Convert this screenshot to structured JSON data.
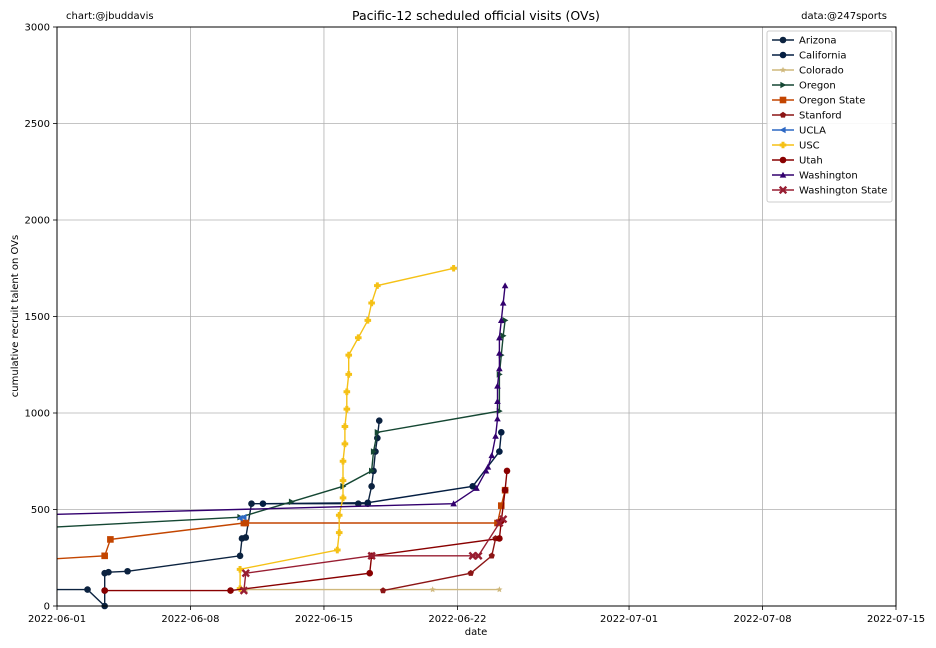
{
  "chart_data": {
    "type": "line",
    "title": "Pacific-12 scheduled official visits (OVs)",
    "credit_left": "chart:@jbuddavis",
    "credit_right": "data:@247sports",
    "xlabel": "date",
    "ylabel": "cumulative recruit talent on OVs",
    "xlim": [
      "2022-06-01",
      "2022-07-15"
    ],
    "ylim": [
      0,
      3000
    ],
    "x_ticks": [
      "2022-06-01",
      "2022-06-08",
      "2022-06-15",
      "2022-06-22",
      "2022-07-01",
      "2022-07-08",
      "2022-07-15"
    ],
    "y_ticks": [
      0,
      500,
      1000,
      1500,
      2000,
      2500,
      3000
    ],
    "grid": true,
    "legend_position": "top-right",
    "series": [
      {
        "name": "Arizona",
        "color": "#0c2340",
        "marker": "circle",
        "points": [
          [
            "2022-06-01",
            85
          ],
          [
            "2022-06-02.6",
            85
          ],
          [
            "2022-06-03.5",
            0
          ],
          [
            "2022-06-03.5",
            80
          ],
          [
            "2022-06-03.5",
            170
          ],
          [
            "2022-06-03.7",
            175
          ],
          [
            "2022-06-04.7",
            180
          ],
          [
            "2022-06-10.6",
            260
          ],
          [
            "2022-06-10.7",
            350
          ],
          [
            "2022-06-10.9",
            355
          ],
          [
            "2022-06-11.2",
            530
          ],
          [
            "2022-06-16.8",
            530
          ],
          [
            "2022-06-17.3",
            530
          ],
          [
            "2022-06-17.5",
            620
          ],
          [
            "2022-06-17.6",
            700
          ],
          [
            "2022-06-17.7",
            800
          ],
          [
            "2022-06-17.8",
            870
          ],
          [
            "2022-06-17.9",
            960
          ]
        ]
      },
      {
        "name": "California",
        "color": "#041e42",
        "marker": "circle",
        "points": [
          [
            "2022-06-11.8",
            530
          ],
          [
            "2022-06-17.3",
            535
          ],
          [
            "2022-06-22.8",
            620
          ],
          [
            "2022-06-24.2",
            800
          ],
          [
            "2022-06-24.3",
            900
          ]
        ]
      },
      {
        "name": "Colorado",
        "color": "#cfb87c",
        "marker": "star",
        "points": [
          [
            "2022-06-10.9",
            85
          ],
          [
            "2022-06-20.7",
            85
          ],
          [
            "2022-06-24.2",
            85
          ]
        ]
      },
      {
        "name": "Oregon",
        "color": "#154733",
        "marker": "triangle-right",
        "points": [
          [
            "2022-06-01",
            410
          ],
          [
            "2022-06-10.6",
            460
          ],
          [
            "2022-06-13.3",
            540
          ],
          [
            "2022-06-16.0",
            620
          ],
          [
            "2022-06-17.5",
            700
          ],
          [
            "2022-06-17.6",
            800
          ],
          [
            "2022-06-17.8",
            900
          ],
          [
            "2022-06-24.2",
            1010
          ],
          [
            "2022-06-24.2",
            1200
          ],
          [
            "2022-06-24.3",
            1300
          ],
          [
            "2022-06-24.4",
            1400
          ],
          [
            "2022-06-24.5",
            1480
          ]
        ]
      },
      {
        "name": "Oregon State",
        "color": "#c34500",
        "marker": "square",
        "points": [
          [
            "2022-06-01",
            245
          ],
          [
            "2022-06-03.5",
            260
          ],
          [
            "2022-06-03.8",
            345
          ],
          [
            "2022-06-10.8",
            430
          ],
          [
            "2022-06-10.9",
            430
          ],
          [
            "2022-06-24.1",
            430
          ],
          [
            "2022-06-24.3",
            520
          ],
          [
            "2022-06-24.5",
            600
          ]
        ]
      },
      {
        "name": "Stanford",
        "color": "#8c1515",
        "marker": "pentagon",
        "points": [
          [
            "2022-06-18.1",
            80
          ],
          [
            "2022-06-22.7",
            170
          ],
          [
            "2022-06-23.8",
            260
          ],
          [
            "2022-06-24.0",
            350
          ]
        ]
      },
      {
        "name": "UCLA",
        "color": "#2d68c4",
        "marker": "triangle-left",
        "points": [
          [
            "2022-06-10.6",
            455
          ],
          [
            "2022-06-10.8",
            460
          ]
        ]
      },
      {
        "name": "USC",
        "color": "#f5c116",
        "marker": "plus",
        "points": [
          [
            "2022-06-10.6",
            90
          ],
          [
            "2022-06-10.6",
            190
          ],
          [
            "2022-06-15.7",
            290
          ],
          [
            "2022-06-15.8",
            380
          ],
          [
            "2022-06-15.8",
            470
          ],
          [
            "2022-06-16.0",
            560
          ],
          [
            "2022-06-16.0",
            650
          ],
          [
            "2022-06-16.0",
            750
          ],
          [
            "2022-06-16.1",
            840
          ],
          [
            "2022-06-16.1",
            930
          ],
          [
            "2022-06-16.2",
            1020
          ],
          [
            "2022-06-16.2",
            1110
          ],
          [
            "2022-06-16.3",
            1200
          ],
          [
            "2022-06-16.3",
            1300
          ],
          [
            "2022-06-16.8",
            1390
          ],
          [
            "2022-06-17.3",
            1480
          ],
          [
            "2022-06-17.5",
            1570
          ],
          [
            "2022-06-17.8",
            1660
          ],
          [
            "2022-06-21.8",
            1750
          ]
        ]
      },
      {
        "name": "Utah",
        "color": "#890000",
        "marker": "circle",
        "points": [
          [
            "2022-06-03.5",
            80
          ],
          [
            "2022-06-10.1",
            80
          ],
          [
            "2022-06-17.4",
            170
          ],
          [
            "2022-06-17.5",
            260
          ],
          [
            "2022-06-24.2",
            350
          ],
          [
            "2022-06-24.3",
            440
          ],
          [
            "2022-06-24.5",
            600
          ],
          [
            "2022-06-24.6",
            700
          ]
        ]
      },
      {
        "name": "Washington",
        "color": "#32006e",
        "marker": "triangle",
        "points": [
          [
            "2022-06-01",
            475
          ],
          [
            "2022-06-21.8",
            530
          ],
          [
            "2022-06-23.0",
            610
          ],
          [
            "2022-06-23.5",
            700
          ],
          [
            "2022-06-23.6",
            720
          ],
          [
            "2022-06-23.8",
            780
          ],
          [
            "2022-06-24.0",
            880
          ],
          [
            "2022-06-24.1",
            970
          ],
          [
            "2022-06-24.1",
            1060
          ],
          [
            "2022-06-24.1",
            1140
          ],
          [
            "2022-06-24.2",
            1230
          ],
          [
            "2022-06-24.2",
            1310
          ],
          [
            "2022-06-24.2",
            1390
          ],
          [
            "2022-06-24.3",
            1480
          ],
          [
            "2022-06-24.4",
            1570
          ],
          [
            "2022-06-24.5",
            1660
          ]
        ]
      },
      {
        "name": "Washington State",
        "color": "#981e32",
        "marker": "x",
        "points": [
          [
            "2022-06-10.8",
            80
          ],
          [
            "2022-06-10.9",
            170
          ],
          [
            "2022-06-17.5",
            260
          ],
          [
            "2022-06-22.8",
            260
          ],
          [
            "2022-06-23.1",
            260
          ],
          [
            "2022-06-24.2",
            430
          ],
          [
            "2022-06-24.4",
            450
          ]
        ]
      }
    ]
  }
}
